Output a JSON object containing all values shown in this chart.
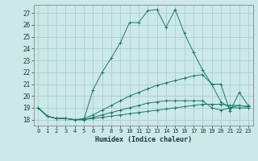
{
  "xlabel": "Humidex (Indice chaleur)",
  "background_color": "#cce8e8",
  "grid_color": "#aad0d0",
  "line_color": "#1a7a6a",
  "xlim": [
    -0.5,
    23.5
  ],
  "ylim": [
    17.5,
    27.7
  ],
  "yticks": [
    18,
    19,
    20,
    21,
    22,
    23,
    24,
    25,
    26,
    27
  ],
  "xticks": [
    0,
    1,
    2,
    3,
    4,
    5,
    6,
    7,
    8,
    9,
    10,
    11,
    12,
    13,
    14,
    15,
    16,
    17,
    18,
    19,
    20,
    21,
    22,
    23
  ],
  "series": [
    [
      19.0,
      18.3,
      18.1,
      18.1,
      18.0,
      18.0,
      18.1,
      18.2,
      18.3,
      18.4,
      18.5,
      18.6,
      18.7,
      18.8,
      18.9,
      19.0,
      19.1,
      19.2,
      19.3,
      19.3,
      19.3,
      19.2,
      19.2,
      19.1
    ],
    [
      19.0,
      18.3,
      18.1,
      18.1,
      18.0,
      18.1,
      18.4,
      18.8,
      19.2,
      19.6,
      20.0,
      20.3,
      20.6,
      20.9,
      21.1,
      21.3,
      21.5,
      21.7,
      21.8,
      21.0,
      19.5,
      19.0,
      19.2,
      19.1
    ],
    [
      19.0,
      18.3,
      18.1,
      18.1,
      18.0,
      18.0,
      18.2,
      18.4,
      18.6,
      18.8,
      19.0,
      19.2,
      19.4,
      19.5,
      19.6,
      19.6,
      19.6,
      19.6,
      19.6,
      19.0,
      18.8,
      19.0,
      19.0,
      19.0
    ],
    [
      19.0,
      18.3,
      18.1,
      18.1,
      18.0,
      18.0,
      20.5,
      22.0,
      23.2,
      24.5,
      26.2,
      26.2,
      27.2,
      27.3,
      25.8,
      27.3,
      25.3,
      23.7,
      22.2,
      21.0,
      21.0,
      18.7,
      20.3,
      19.2
    ]
  ]
}
